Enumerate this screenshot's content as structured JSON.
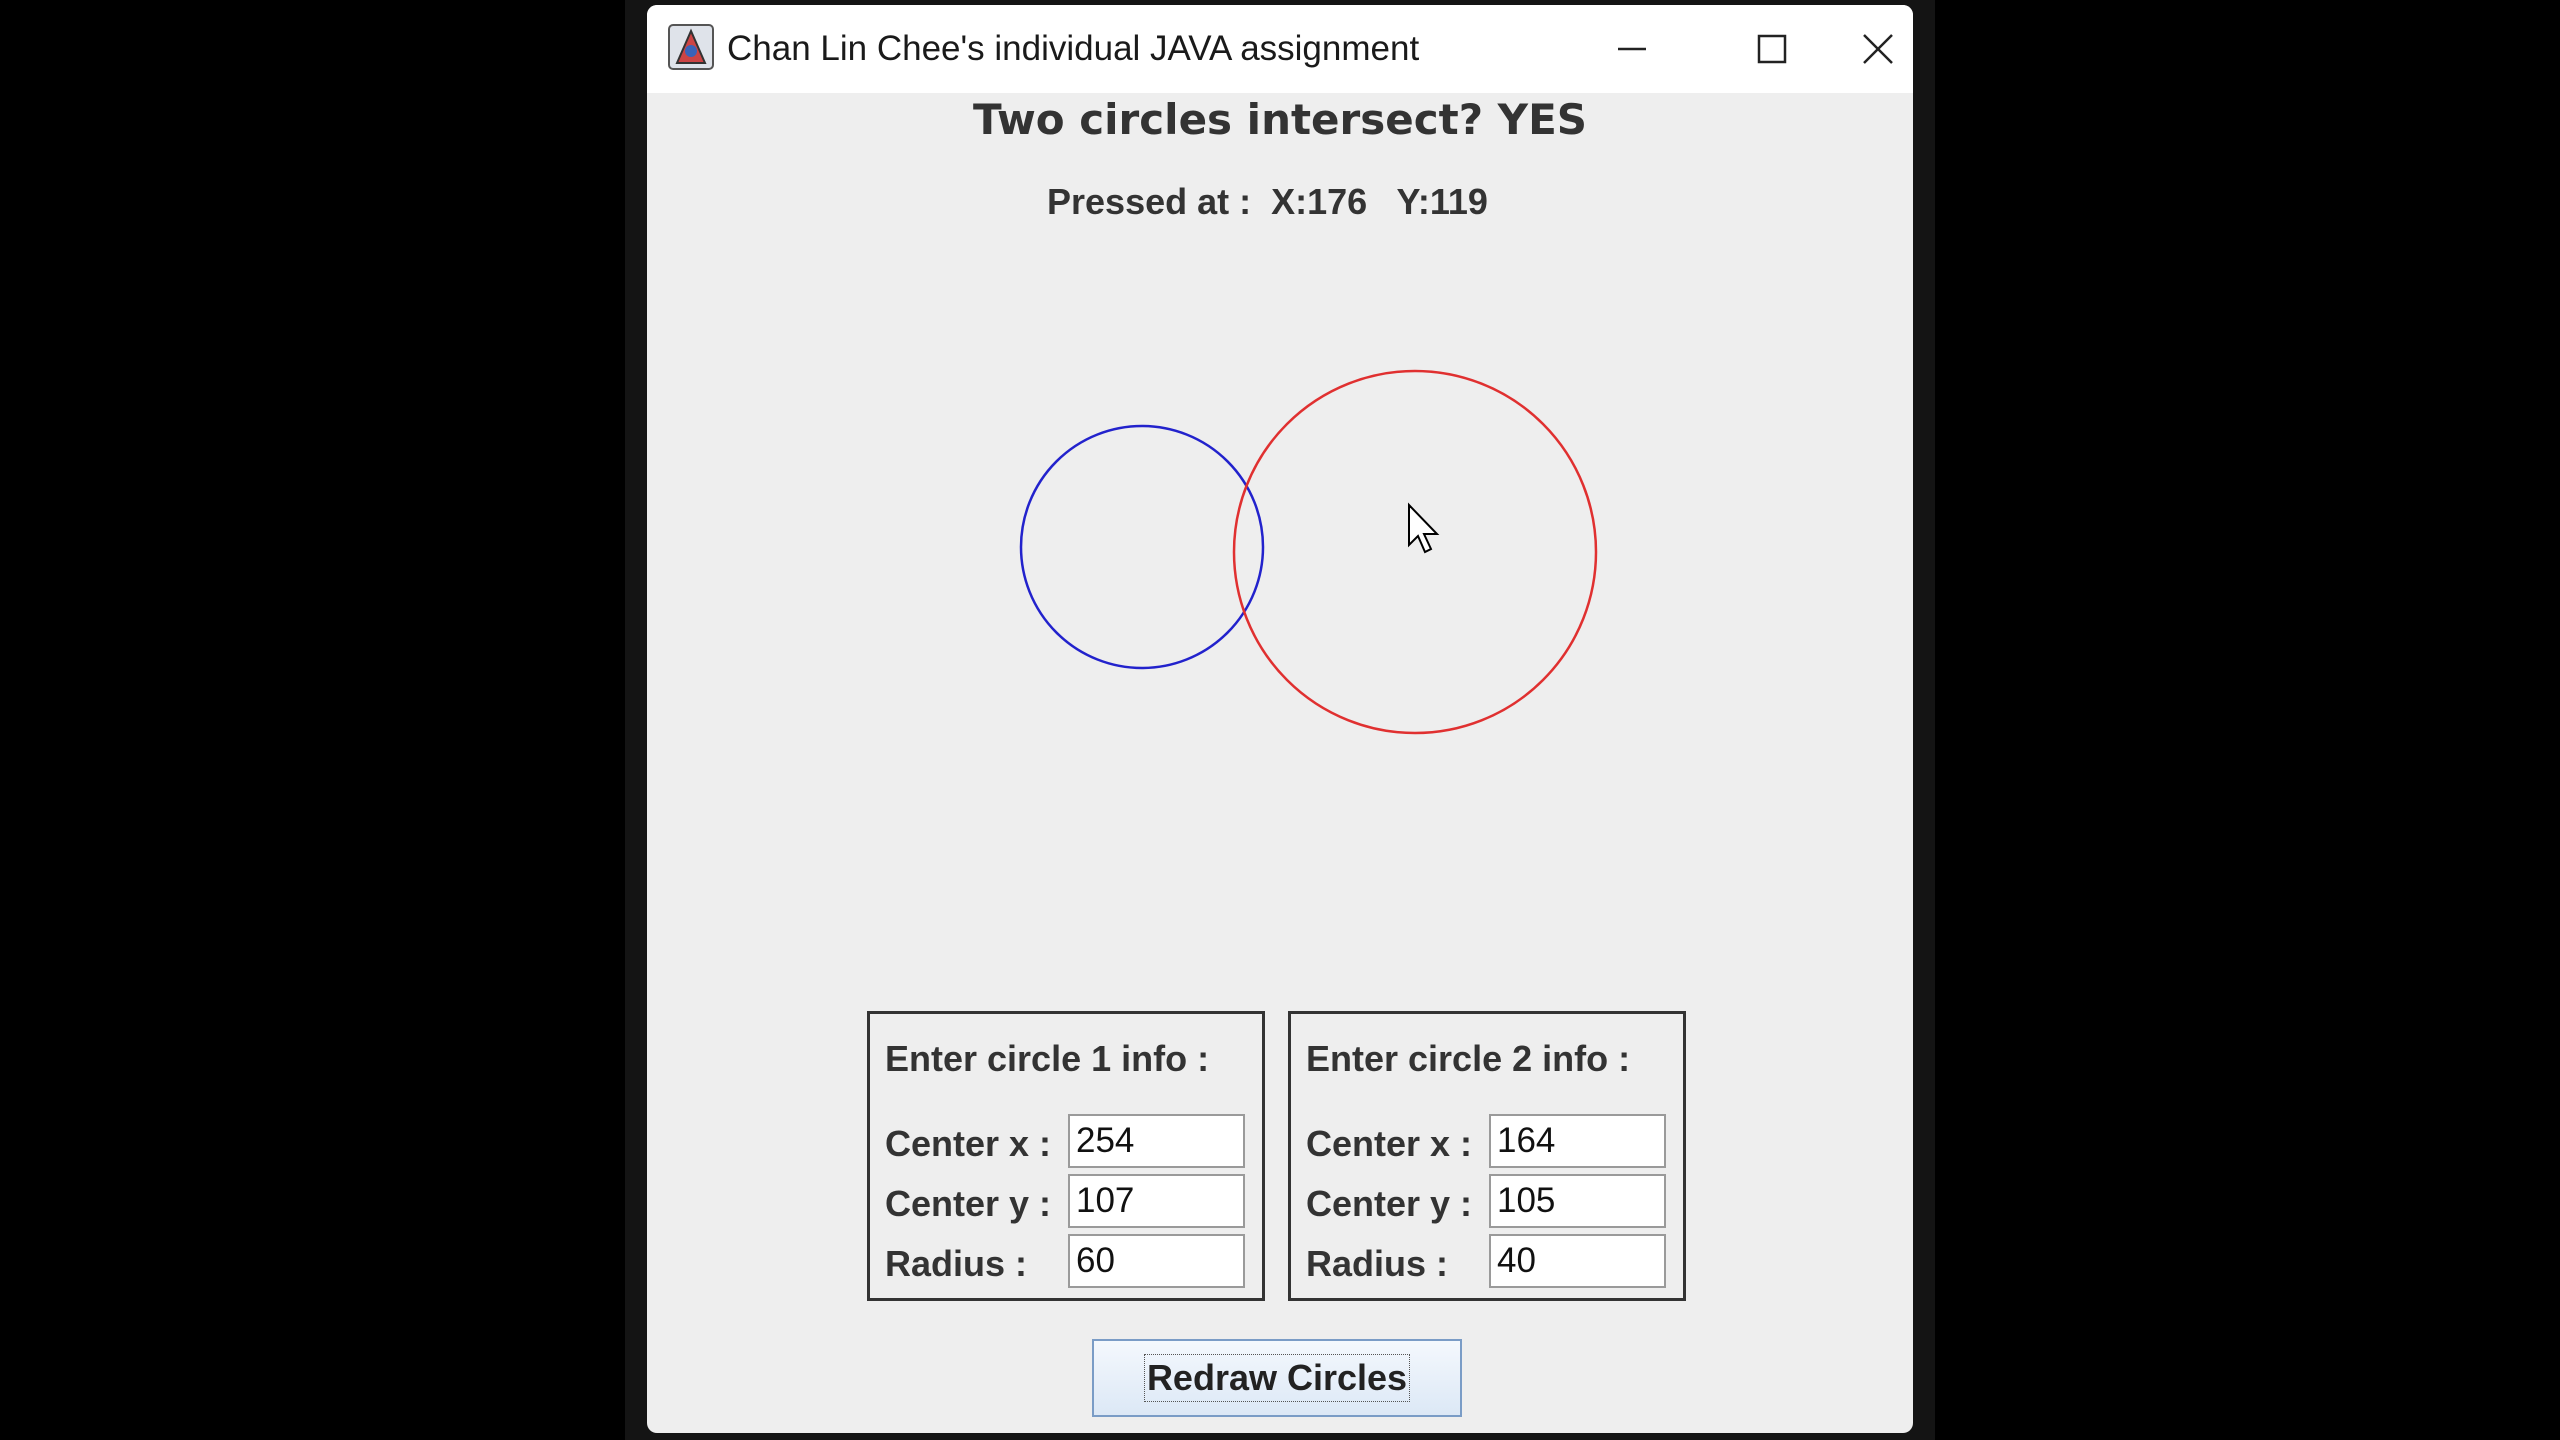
{
  "window": {
    "title": "Chan Lin Chee's individual JAVA assignment"
  },
  "status": {
    "headline": "Two circles intersect?  YES",
    "pressed_label": "Pressed at :  X:176   Y:119"
  },
  "colors": {
    "circle1": "#2222cc",
    "circle2": "#e03030",
    "background": "#eeeeee"
  },
  "circle1": {
    "heading": "Enter circle 1 info :",
    "center_x_label": "Center x :",
    "center_y_label": "Center y :",
    "radius_label": "Radius :",
    "center_x": "254",
    "center_y": "107",
    "radius": "60"
  },
  "circle2": {
    "heading": "Enter circle 2 info :",
    "center_x_label": "Center x :",
    "center_y_label": "Center y :",
    "radius_label": "Radius :",
    "center_x": "164",
    "center_y": "105",
    "radius": "40"
  },
  "actions": {
    "redraw_label": "Redraw Circles"
  },
  "icons": {
    "app": "java-app-icon",
    "minimize": "minimize-icon",
    "maximize": "maximize-icon",
    "close": "close-icon",
    "cursor": "mouse-pointer-icon"
  }
}
